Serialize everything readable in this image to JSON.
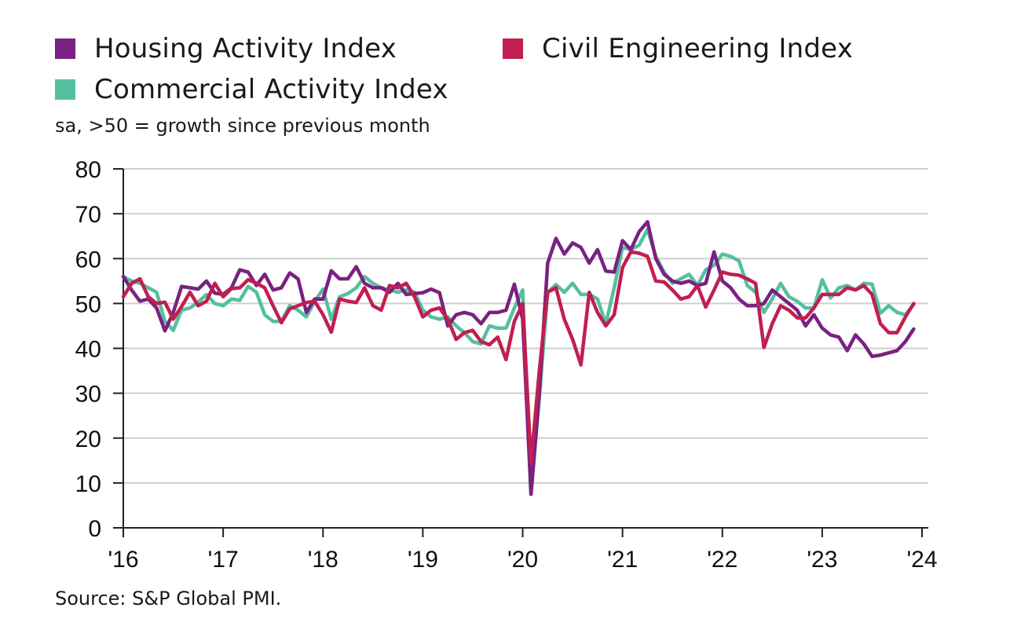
{
  "legend": [
    {
      "label": "Housing Activity Index",
      "color": "#7a2181"
    },
    {
      "label": "Civil Engineering Index",
      "color": "#c01f4f"
    },
    {
      "label": "Commercial Activity Index",
      "color": "#55bfa0"
    }
  ],
  "subtitle": "sa, >50 = growth since previous month",
  "source": "Source: S&P Global PMI.",
  "chart_data": {
    "type": "line",
    "x_start": "2016-01",
    "frequency": "monthly",
    "ylim": [
      0,
      80
    ],
    "yticks": [
      0,
      10,
      20,
      30,
      40,
      50,
      60,
      70,
      80
    ],
    "xticks": [
      "'16",
      "'17",
      "'18",
      "'19",
      "'20",
      "'21",
      "'22",
      "'23",
      "'24"
    ],
    "grid": true,
    "series": [
      {
        "name": "Housing Activity Index",
        "color": "#7a2181",
        "values": [
          56,
          53,
          50.5,
          51,
          49,
          43.9,
          48,
          53.8,
          53.5,
          53.2,
          55,
          52.3,
          52,
          53.5,
          57.5,
          57,
          54,
          56.5,
          53,
          53.5,
          56.8,
          55.5,
          48,
          51,
          51,
          57.3,
          55.5,
          55.5,
          58.2,
          54.5,
          53.5,
          53.5,
          52.5,
          54.5,
          52,
          52.2,
          52.4,
          53.2,
          52.4,
          45,
          47.5,
          48,
          47.5,
          45.5,
          48,
          48,
          48.5,
          54.3,
          46.5,
          7.5,
          30,
          59,
          64.5,
          61,
          63.5,
          62.5,
          59,
          62,
          57.2,
          57,
          64,
          62,
          66,
          68.2,
          60,
          56.5,
          55,
          54.5,
          55,
          54,
          54.5,
          61.5,
          55,
          53.5,
          51,
          49.5,
          49.5,
          50,
          53,
          51.5,
          50,
          48.5,
          45,
          47.5,
          44.5,
          43,
          42.5,
          39.5,
          43,
          41,
          38.2,
          38.5,
          39,
          39.5,
          41.5,
          44.3
        ]
      },
      {
        "name": "Civil Engineering Index",
        "color": "#c01f4f",
        "values": [
          51.5,
          54.5,
          55.5,
          51.5,
          50,
          50.3,
          46.5,
          49.3,
          52.5,
          49.5,
          50.5,
          54.5,
          51.5,
          53.3,
          53.5,
          55.3,
          54.5,
          53.5,
          49.5,
          45.7,
          48.8,
          49.5,
          50.2,
          50.5,
          47.5,
          43.6,
          51,
          50.5,
          50.2,
          53.5,
          49.5,
          48.5,
          54,
          53.5,
          54.5,
          51.5,
          47,
          48.5,
          49,
          46.5,
          42,
          43.5,
          44,
          41.5,
          40.8,
          42.5,
          37.5,
          46,
          50,
          14.5,
          35,
          52.5,
          53.5,
          46.5,
          42,
          36.3,
          52.5,
          48,
          45,
          47.5,
          58,
          61.5,
          61.2,
          60.5,
          55,
          54.8,
          53,
          51,
          51.5,
          54,
          49.2,
          53,
          57,
          56.5,
          56.3,
          55.5,
          54.5,
          40.2,
          45.5,
          49.5,
          48.5,
          46.8,
          46.8,
          49,
          52,
          52,
          52,
          53.5,
          53,
          54,
          52,
          45.5,
          43.5,
          43.5,
          47,
          50
        ]
      },
      {
        "name": "Commercial Activity Index",
        "color": "#55bfa0",
        "values": [
          56,
          55,
          54.5,
          53.5,
          52.5,
          46,
          44,
          48.5,
          49,
          50.3,
          52,
          50,
          49.5,
          51,
          50.7,
          53.8,
          52.5,
          47.5,
          46,
          46,
          49.5,
          48.5,
          47,
          50.5,
          53.2,
          46.5,
          51.5,
          52.2,
          53.5,
          56,
          54.5,
          53.5,
          53,
          52.5,
          53,
          52.5,
          48.5,
          47,
          46.5,
          47,
          45,
          43.5,
          41.5,
          41,
          45,
          44.5,
          44.5,
          49,
          53,
          7.5,
          29,
          52.5,
          54.2,
          52.5,
          54.5,
          52,
          52,
          51,
          45.5,
          53.5,
          62.5,
          62,
          63,
          66.5,
          60.5,
          57,
          54.5,
          55.5,
          56.5,
          54,
          57.5,
          58.5,
          61,
          60.5,
          59.5,
          54,
          52.5,
          48,
          51,
          54.5,
          51.5,
          50.5,
          49,
          49,
          55.3,
          51.2,
          53.5,
          54,
          53,
          54.5,
          54.3,
          47.8,
          49.5,
          48,
          47.5,
          49.8
        ]
      }
    ]
  }
}
